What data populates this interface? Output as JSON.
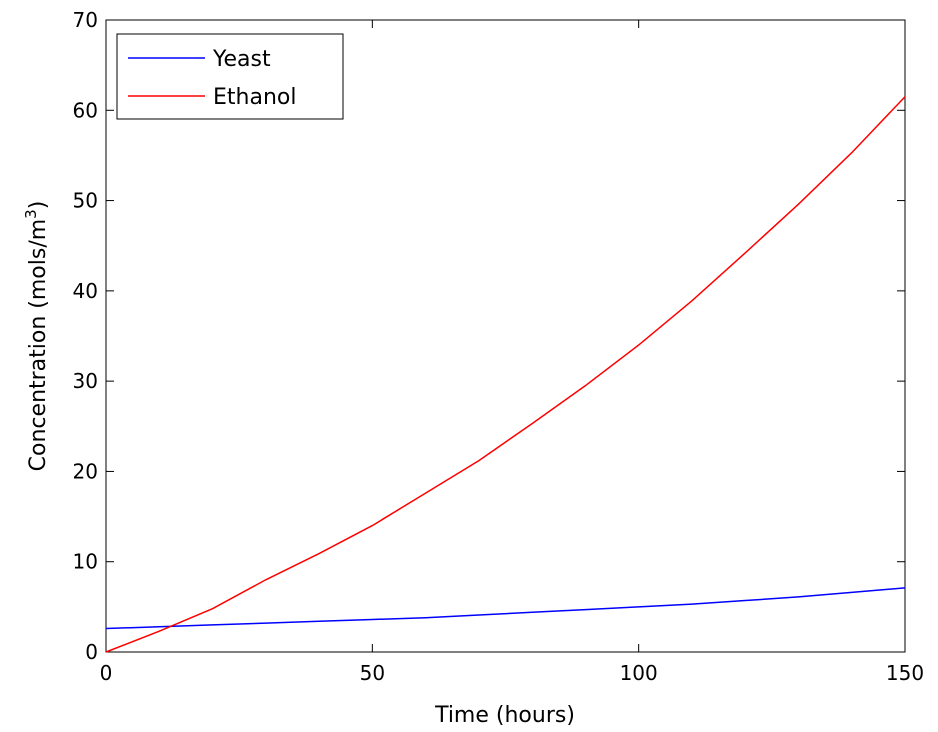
{
  "chart_data": {
    "type": "line",
    "xlabel": "Time (hours)",
    "ylabel": "Concentration (mols/m",
    "ylabel_superscript": "3",
    "ylabel_suffix": ")",
    "xlim": [
      0,
      150
    ],
    "ylim": [
      0,
      70
    ],
    "xticks": [
      0,
      50,
      100,
      150
    ],
    "yticks": [
      0,
      10,
      20,
      30,
      40,
      50,
      60,
      70
    ],
    "grid": false,
    "legend_position": "top-left",
    "series": [
      {
        "name": "Yeast",
        "color": "#0000ff",
        "x": [
          0,
          10,
          20,
          30,
          40,
          50,
          60,
          70,
          80,
          90,
          100,
          110,
          120,
          130,
          140,
          150
        ],
        "y": [
          2.6,
          2.8,
          3.0,
          3.2,
          3.4,
          3.6,
          3.8,
          4.1,
          4.4,
          4.7,
          5.0,
          5.3,
          5.7,
          6.1,
          6.6,
          7.1
        ]
      },
      {
        "name": "Ethanol",
        "color": "#ff0000",
        "x": [
          0,
          10,
          20,
          30,
          40,
          50,
          60,
          70,
          80,
          90,
          100,
          110,
          120,
          130,
          140,
          150
        ],
        "y": [
          0.0,
          2.3,
          4.8,
          8.0,
          10.9,
          14.0,
          17.6,
          21.2,
          25.3,
          29.5,
          34.0,
          38.9,
          44.2,
          49.6,
          55.3,
          61.5
        ]
      }
    ]
  }
}
